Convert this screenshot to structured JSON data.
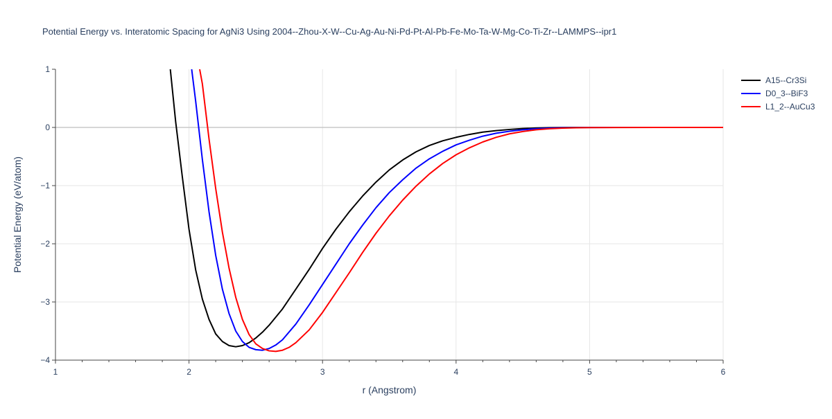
{
  "chart_data": {
    "type": "line",
    "title": "Potential Energy vs. Interatomic Spacing for AgNi3 Using 2004--Zhou-X-W--Cu-Ag-Au-Ni-Pd-Pt-Al-Pb-Fe-Mo-Ta-W-Mg-Co-Ti-Zr--LAMMPS--ipr1",
    "xlabel": "r (Angstrom)",
    "ylabel": "Potential Energy (eV/atom)",
    "xlim": [
      1,
      6
    ],
    "ylim": [
      -4,
      1
    ],
    "x_ticks": [
      1,
      2,
      3,
      4,
      5,
      6
    ],
    "x_tick_labels": [
      "1",
      "2",
      "3",
      "4",
      "5",
      "6"
    ],
    "y_ticks": [
      -4,
      -3,
      -2,
      -1,
      0,
      1
    ],
    "y_tick_labels": [
      "−4",
      "−3",
      "−2",
      "−1",
      "0",
      "1"
    ],
    "grid": true,
    "legend_position": "top-right",
    "series": [
      {
        "name": "A15--Cr3Si",
        "color": "#000000",
        "x": [
          1.86,
          1.9,
          1.95,
          2.0,
          2.05,
          2.1,
          2.15,
          2.2,
          2.25,
          2.3,
          2.35,
          2.4,
          2.45,
          2.5,
          2.55,
          2.6,
          2.7,
          2.8,
          2.9,
          3.0,
          3.1,
          3.2,
          3.3,
          3.4,
          3.5,
          3.6,
          3.7,
          3.8,
          3.9,
          4.0,
          4.1,
          4.2,
          4.3,
          4.4,
          4.5,
          4.6,
          4.7,
          4.8,
          4.9,
          5.0,
          5.2,
          5.5,
          6.0
        ],
        "y": [
          1.0,
          0.1,
          -0.85,
          -1.75,
          -2.45,
          -2.95,
          -3.3,
          -3.55,
          -3.68,
          -3.75,
          -3.77,
          -3.75,
          -3.7,
          -3.62,
          -3.52,
          -3.4,
          -3.12,
          -2.78,
          -2.44,
          -2.08,
          -1.75,
          -1.45,
          -1.18,
          -0.94,
          -0.73,
          -0.56,
          -0.42,
          -0.31,
          -0.23,
          -0.17,
          -0.12,
          -0.08,
          -0.055,
          -0.035,
          -0.02,
          -0.01,
          -0.005,
          -0.002,
          0.0,
          0.0,
          0.0,
          0.0,
          0.0
        ]
      },
      {
        "name": "D0_3--BiF3",
        "color": "#0000ff",
        "x": [
          2.02,
          2.05,
          2.1,
          2.15,
          2.2,
          2.25,
          2.3,
          2.35,
          2.4,
          2.45,
          2.5,
          2.55,
          2.6,
          2.65,
          2.7,
          2.8,
          2.9,
          3.0,
          3.1,
          3.2,
          3.3,
          3.4,
          3.5,
          3.6,
          3.7,
          3.8,
          3.9,
          4.0,
          4.1,
          4.2,
          4.3,
          4.4,
          4.5,
          4.6,
          4.7,
          4.8,
          4.9,
          5.0,
          5.2,
          5.5,
          6.0
        ],
        "y": [
          1.0,
          0.45,
          -0.55,
          -1.45,
          -2.2,
          -2.78,
          -3.2,
          -3.5,
          -3.68,
          -3.78,
          -3.82,
          -3.83,
          -3.8,
          -3.74,
          -3.65,
          -3.38,
          -3.05,
          -2.7,
          -2.35,
          -2.0,
          -1.68,
          -1.38,
          -1.12,
          -0.9,
          -0.7,
          -0.54,
          -0.41,
          -0.3,
          -0.22,
          -0.15,
          -0.1,
          -0.065,
          -0.04,
          -0.023,
          -0.012,
          -0.006,
          -0.003,
          -0.001,
          0.0,
          0.0,
          0.0
        ]
      },
      {
        "name": "L1_2--AuCu3",
        "color": "#ff0000",
        "x": [
          2.08,
          2.1,
          2.15,
          2.2,
          2.25,
          2.3,
          2.35,
          2.4,
          2.45,
          2.5,
          2.55,
          2.6,
          2.65,
          2.7,
          2.75,
          2.8,
          2.9,
          3.0,
          3.1,
          3.2,
          3.3,
          3.4,
          3.5,
          3.6,
          3.7,
          3.8,
          3.9,
          4.0,
          4.1,
          4.2,
          4.3,
          4.4,
          4.5,
          4.6,
          4.7,
          4.8,
          4.9,
          5.0,
          5.2,
          5.5,
          6.0
        ],
        "y": [
          1.0,
          0.75,
          -0.2,
          -1.05,
          -1.8,
          -2.42,
          -2.92,
          -3.3,
          -3.56,
          -3.72,
          -3.8,
          -3.84,
          -3.85,
          -3.83,
          -3.78,
          -3.7,
          -3.48,
          -3.18,
          -2.84,
          -2.5,
          -2.15,
          -1.82,
          -1.52,
          -1.25,
          -1.01,
          -0.8,
          -0.62,
          -0.47,
          -0.35,
          -0.25,
          -0.17,
          -0.11,
          -0.07,
          -0.04,
          -0.022,
          -0.012,
          -0.006,
          -0.003,
          -0.001,
          0.0,
          0.0
        ]
      }
    ]
  }
}
